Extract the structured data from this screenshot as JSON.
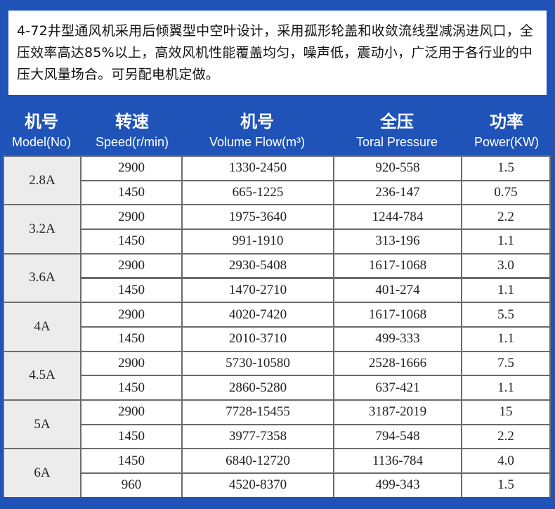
{
  "intro": {
    "text": "4-72井型通风机采用后倾翼型中空叶设计，采用孤形轮盖和收敛流线型减涡进风口，全压效率高达85%以上，高效风机性能覆盖均匀，噪声低，震动小，广泛用于各行业的中压大风量场合。可另配电机定做。"
  },
  "headers": [
    {
      "zh": "机号",
      "en": "Model(No)"
    },
    {
      "zh": "转速",
      "en": "Speed(r/min)"
    },
    {
      "zh": "机号",
      "en": "Volume Flow(m³)"
    },
    {
      "zh": "全压",
      "en": "Toral Pressure"
    },
    {
      "zh": "功率",
      "en": "Power(KW)"
    }
  ],
  "models": [
    {
      "model": "2.8A",
      "rows": [
        {
          "speed": "2900",
          "flow": "1330-2450",
          "pressure": "920-558",
          "power": "1.5"
        },
        {
          "speed": "1450",
          "flow": "665-1225",
          "pressure": "236-147",
          "power": "0.75"
        }
      ]
    },
    {
      "model": "3.2A",
      "rows": [
        {
          "speed": "2900",
          "flow": "1975-3640",
          "pressure": "1244-784",
          "power": "2.2"
        },
        {
          "speed": "1450",
          "flow": "991-1910",
          "pressure": "313-196",
          "power": "1.1"
        }
      ]
    },
    {
      "model": "3.6A",
      "rows": [
        {
          "speed": "2900",
          "flow": "2930-5408",
          "pressure": "1617-1068",
          "power": "3.0"
        },
        {
          "speed": "1450",
          "flow": "1470-2710",
          "pressure": "401-274",
          "power": "1.1"
        }
      ]
    },
    {
      "model": "4A",
      "rows": [
        {
          "speed": "2900",
          "flow": "4020-7420",
          "pressure": "1617-1068",
          "power": "5.5"
        },
        {
          "speed": "1450",
          "flow": "2010-3710",
          "pressure": "499-333",
          "power": "1.1"
        }
      ]
    },
    {
      "model": "4.5A",
      "rows": [
        {
          "speed": "2900",
          "flow": "5730-10580",
          "pressure": "2528-1666",
          "power": "7.5"
        },
        {
          "speed": "1450",
          "flow": "2860-5280",
          "pressure": "637-421",
          "power": "1.1"
        }
      ]
    },
    {
      "model": "5A",
      "rows": [
        {
          "speed": "2900",
          "flow": "7728-15455",
          "pressure": "3187-2019",
          "power": "15"
        },
        {
          "speed": "1450",
          "flow": "3977-7358",
          "pressure": "794-548",
          "power": "2.2"
        }
      ]
    },
    {
      "model": "6A",
      "rows": [
        {
          "speed": "1450",
          "flow": "6840-12720",
          "pressure": "1136-784",
          "power": "4.0"
        },
        {
          "speed": "960",
          "flow": "4520-8370",
          "pressure": "499-343",
          "power": "1.5"
        }
      ]
    }
  ],
  "colors": {
    "background": "#1f53b8",
    "header_text": "#ffffff",
    "model_cell": "#ececec",
    "data_cell": "#ffffff",
    "grid_line": "#6b6b6b"
  }
}
